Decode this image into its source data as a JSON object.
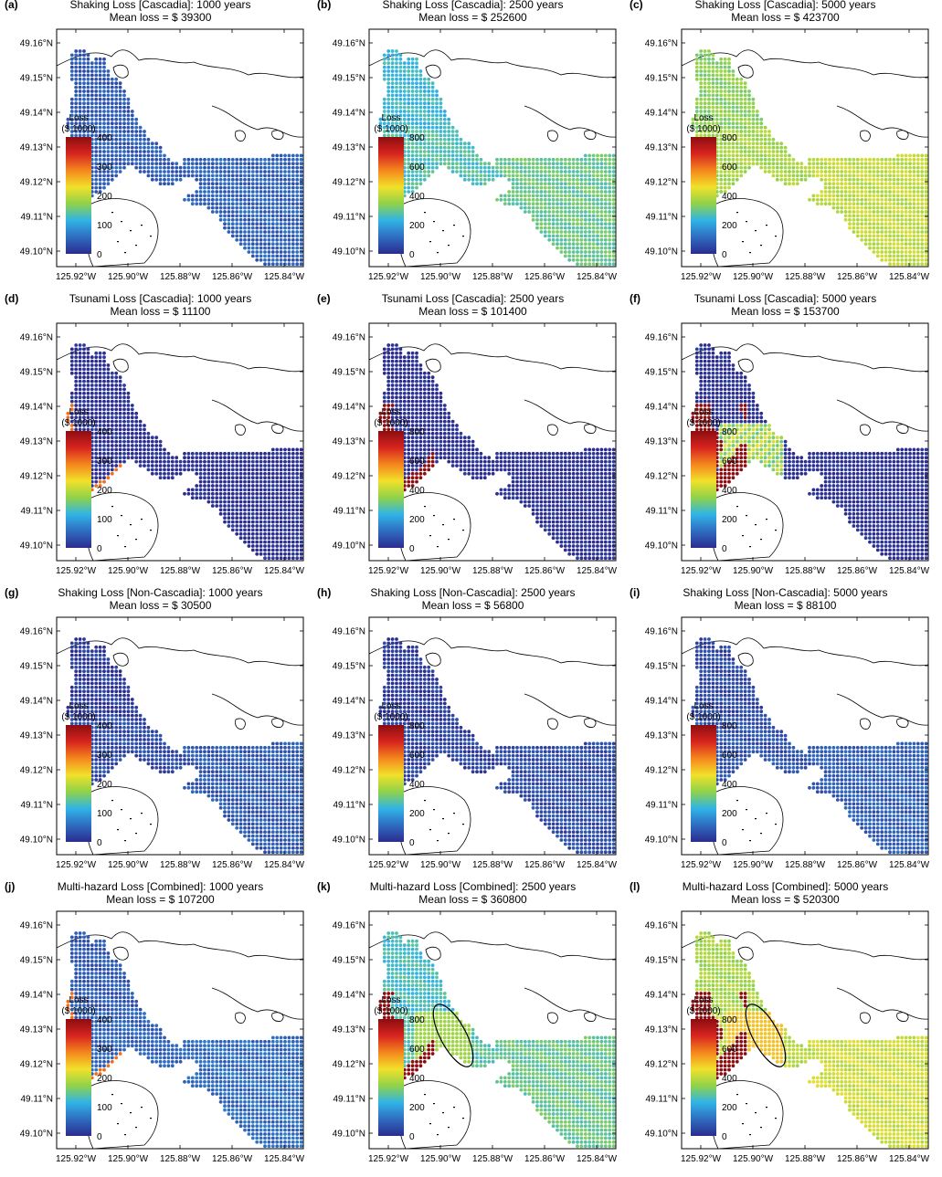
{
  "lat_ticks": [
    "49.16°N",
    "49.15°N",
    "49.14°N",
    "49.13°N",
    "49.12°N",
    "49.11°N",
    "49.10°N"
  ],
  "lon_ticks": [
    "125.92°W",
    "125.90°W",
    "125.88°W",
    "125.86°W",
    "125.84°W"
  ],
  "colorbar_title": [
    "Loss",
    "($ 1000)"
  ],
  "colormap": [
    "#2b2c8f",
    "#2f6cc0",
    "#30b4e6",
    "#8fd24a",
    "#f1e12a",
    "#f5861d",
    "#d7241f",
    "#8c0d10"
  ],
  "panels": [
    {
      "label": "(a)",
      "title": "Shaking Loss [Cascadia]: 1000 years",
      "mean": "Mean loss = $ 39300",
      "cbar_max": 400,
      "cbar_ticks": [
        "400",
        "300",
        "200",
        "100",
        "0"
      ],
      "north": 0.1,
      "south": 0.12,
      "tsunami": 0,
      "ellipse": false
    },
    {
      "label": "(b)",
      "title": "Shaking Loss [Cascadia]: 2500 years",
      "mean": "Mean loss = $ 252600",
      "cbar_max": 800,
      "cbar_ticks": [
        "800",
        "600",
        "400",
        "200",
        "0"
      ],
      "north": 0.3,
      "south": 0.37,
      "tsunami": 0,
      "ellipse": false
    },
    {
      "label": "(c)",
      "title": "Shaking Loss [Cascadia]: 5000 years",
      "mean": "Mean loss = $ 423700",
      "cbar_max": 800,
      "cbar_ticks": [
        "800",
        "600",
        "400",
        "200",
        "0"
      ],
      "north": 0.42,
      "south": 0.5,
      "tsunami": 0,
      "ellipse": false
    },
    {
      "label": "(d)",
      "title": "Tsunami Loss [Cascadia]: 1000 years",
      "mean": "Mean loss = $ 11100",
      "cbar_max": 400,
      "cbar_ticks": [
        "400",
        "300",
        "200",
        "100",
        "0"
      ],
      "north": 0.0,
      "south": 0.0,
      "tsunami": 1,
      "ellipse": false
    },
    {
      "label": "(e)",
      "title": "Tsunami Loss [Cascadia]: 2500 years",
      "mean": "Mean loss = $ 101400",
      "cbar_max": 800,
      "cbar_ticks": [
        "800",
        "600",
        "400",
        "200",
        "0"
      ],
      "north": 0.0,
      "south": 0.0,
      "tsunami": 2,
      "ellipse": false
    },
    {
      "label": "(f)",
      "title": "Tsunami Loss [Cascadia]: 5000 years",
      "mean": "Mean loss = $ 153700",
      "cbar_max": 800,
      "cbar_ticks": [
        "800",
        "600",
        "400",
        "200",
        "0"
      ],
      "north": 0.0,
      "south": 0.0,
      "tsunami": 3,
      "ellipse": false
    },
    {
      "label": "(g)",
      "title": "Shaking Loss [Non-Cascadia]: 1000 years",
      "mean": "Mean loss = $ 30500",
      "cbar_max": 400,
      "cbar_ticks": [
        "400",
        "300",
        "200",
        "100",
        "0"
      ],
      "north": 0.03,
      "south": 0.1,
      "tsunami": 0,
      "ellipse": false
    },
    {
      "label": "(h)",
      "title": "Shaking Loss [Non-Cascadia]: 2500 years",
      "mean": "Mean loss = $ 56800",
      "cbar_max": 800,
      "cbar_ticks": [
        "800",
        "600",
        "400",
        "200",
        "0"
      ],
      "north": 0.03,
      "south": 0.07,
      "tsunami": 0,
      "ellipse": false
    },
    {
      "label": "(i)",
      "title": "Shaking Loss [Non-Cascadia]: 5000 years",
      "mean": "Mean loss = $ 88100",
      "cbar_max": 800,
      "cbar_ticks": [
        "800",
        "600",
        "400",
        "200",
        "0"
      ],
      "north": 0.06,
      "south": 0.11,
      "tsunami": 0,
      "ellipse": false
    },
    {
      "label": "(j)",
      "title": "Multi-hazard Loss [Combined]: 1000 years",
      "mean": "Mean loss = $ 107200",
      "cbar_max": 400,
      "cbar_ticks": [
        "400",
        "300",
        "200",
        "100",
        "0"
      ],
      "north": 0.1,
      "south": 0.14,
      "tsunami": 1,
      "ellipse": false
    },
    {
      "label": "(k)",
      "title": "Multi-hazard Loss [Combined]: 2500 years",
      "mean": "Mean loss = $ 360800",
      "cbar_max": 800,
      "cbar_ticks": [
        "800",
        "600",
        "400",
        "200",
        "0"
      ],
      "north": 0.32,
      "south": 0.37,
      "tsunami": 2,
      "ellipse": true
    },
    {
      "label": "(l)",
      "title": "Multi-hazard Loss [Combined]: 5000 years",
      "mean": "Mean loss = $ 520300",
      "cbar_max": 800,
      "cbar_ticks": [
        "800",
        "600",
        "400",
        "200",
        "0"
      ],
      "north": 0.46,
      "south": 0.52,
      "tsunami": 3,
      "ellipse": true
    }
  ]
}
